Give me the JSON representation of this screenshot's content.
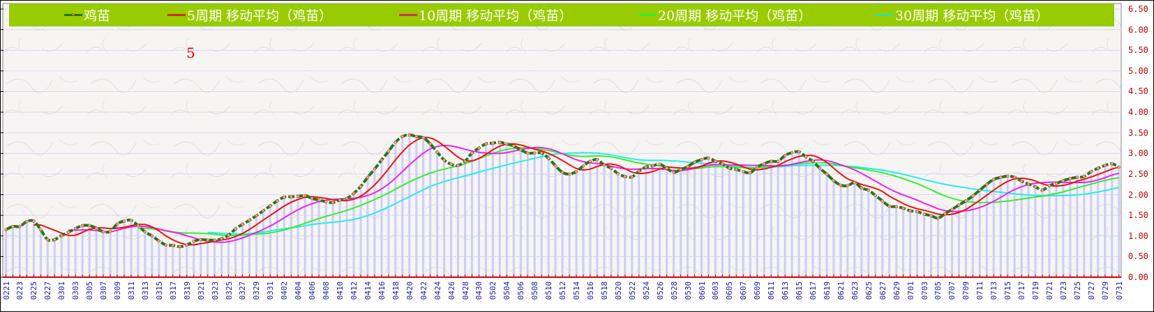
{
  "chart_data": {
    "type": "line",
    "title": "",
    "xlabel": "",
    "ylabel": "",
    "ylim": [
      0,
      6.5
    ],
    "y_ticks": [
      "0.00",
      "0.50",
      "1.00",
      "1.50",
      "2.00",
      "2.50",
      "3.00",
      "3.50",
      "4.00",
      "4.50",
      "5.00",
      "5.50",
      "6.00",
      "6.50"
    ],
    "grid": true,
    "legend_position": "top",
    "annotation": "5",
    "categories": [
      "0221",
      "0222",
      "0223",
      "0224",
      "0225",
      "0226",
      "0227",
      "0228",
      "0301",
      "0302",
      "0303",
      "0304",
      "0305",
      "0306",
      "0307",
      "0308",
      "0309",
      "0310",
      "0311",
      "0312",
      "0313",
      "0314",
      "0315",
      "0316",
      "0317",
      "0318",
      "0319",
      "0320",
      "0321",
      "0322",
      "0323",
      "0324",
      "0325",
      "0326",
      "0327",
      "0328",
      "0329",
      "0330",
      "0331",
      "0401",
      "0402",
      "0403",
      "0404",
      "0405",
      "0406",
      "0407",
      "0408",
      "0409",
      "0410",
      "0411",
      "0412",
      "0413",
      "0414",
      "0415",
      "0416",
      "0417",
      "0418",
      "0419",
      "0420",
      "0421",
      "0422",
      "0423",
      "0424",
      "0425",
      "0426",
      "0427",
      "0428",
      "0429",
      "0430",
      "0501",
      "0502",
      "0503",
      "0504",
      "0505",
      "0506",
      "0507",
      "0508",
      "0509",
      "0510",
      "0511",
      "0512",
      "0513",
      "0514",
      "0515",
      "0516",
      "0517",
      "0518",
      "0519",
      "0520",
      "0521",
      "0522",
      "0523",
      "0524",
      "0525",
      "0526",
      "0527",
      "0528",
      "0529",
      "0530",
      "0531",
      "0601",
      "0602",
      "0603",
      "0604",
      "0605",
      "0606",
      "0607",
      "0608",
      "0609",
      "0610",
      "0611",
      "0612",
      "0613",
      "0614",
      "0615",
      "0616",
      "0617",
      "0618",
      "0619",
      "0620",
      "0621",
      "0622",
      "0623",
      "0624",
      "0625",
      "0626",
      "0627",
      "0628",
      "0629",
      "0630",
      "0701",
      "0702",
      "0703",
      "0704",
      "0705",
      "0706",
      "0707",
      "0708",
      "0709",
      "0710",
      "0711",
      "0712",
      "0713",
      "0714",
      "0715",
      "0716",
      "0717",
      "0718",
      "0719",
      "0720",
      "0721",
      "0722",
      "0723",
      "0724",
      "0725",
      "0726",
      "0727",
      "0728",
      "0729",
      "0730",
      "0731"
    ],
    "series": [
      {
        "name": "鸡苗",
        "color": "#1b7a1b",
        "kind": "main",
        "values": [
          1.15,
          1.23,
          1.23,
          1.35,
          1.36,
          1.15,
          0.91,
          0.91,
          1.01,
          1.09,
          1.18,
          1.25,
          1.25,
          1.19,
          1.1,
          1.11,
          1.29,
          1.36,
          1.38,
          1.25,
          1.1,
          1.0,
          0.88,
          0.78,
          0.77,
          0.74,
          0.78,
          0.87,
          0.91,
          0.9,
          0.9,
          0.93,
          1.02,
          1.17,
          1.28,
          1.38,
          1.49,
          1.61,
          1.73,
          1.85,
          1.94,
          1.95,
          1.96,
          1.98,
          1.91,
          1.87,
          1.83,
          1.81,
          1.87,
          1.91,
          2.03,
          2.2,
          2.42,
          2.62,
          2.84,
          3.05,
          3.27,
          3.41,
          3.45,
          3.41,
          3.38,
          3.23,
          3.03,
          2.84,
          2.74,
          2.71,
          2.81,
          3.01,
          3.13,
          3.23,
          3.25,
          3.27,
          3.23,
          3.18,
          3.09,
          3.01,
          3.01,
          3.01,
          2.88,
          2.7,
          2.54,
          2.5,
          2.56,
          2.7,
          2.81,
          2.85,
          2.72,
          2.64,
          2.51,
          2.44,
          2.43,
          2.57,
          2.67,
          2.7,
          2.74,
          2.64,
          2.54,
          2.61,
          2.68,
          2.79,
          2.85,
          2.89,
          2.81,
          2.75,
          2.64,
          2.61,
          2.56,
          2.53,
          2.67,
          2.75,
          2.81,
          2.81,
          2.95,
          3.02,
          3.04,
          2.92,
          2.81,
          2.64,
          2.5,
          2.34,
          2.23,
          2.22,
          2.29,
          2.16,
          2.11,
          1.98,
          1.85,
          1.72,
          1.71,
          1.67,
          1.61,
          1.59,
          1.53,
          1.49,
          1.43,
          1.54,
          1.64,
          1.75,
          1.85,
          1.97,
          2.11,
          2.25,
          2.37,
          2.42,
          2.45,
          2.42,
          2.33,
          2.26,
          2.19,
          2.11,
          2.22,
          2.27,
          2.34,
          2.39,
          2.42,
          2.44,
          2.56,
          2.64,
          2.71,
          2.75,
          2.67
        ]
      },
      {
        "name": "5周期 移动平均（鸡苗）",
        "color": "#ee1111",
        "kind": "sma",
        "period": 5
      },
      {
        "name": "10周期 移动平均（鸡苗）",
        "color": "#ee22ee",
        "kind": "sma",
        "period": 10
      },
      {
        "name": "20周期 移动平均（鸡苗）",
        "color": "#33ee33",
        "kind": "sma",
        "period": 20
      },
      {
        "name": "30周期 移动平均（鸡苗）",
        "color": "#22eeee",
        "kind": "sma",
        "period": 30
      }
    ]
  }
}
